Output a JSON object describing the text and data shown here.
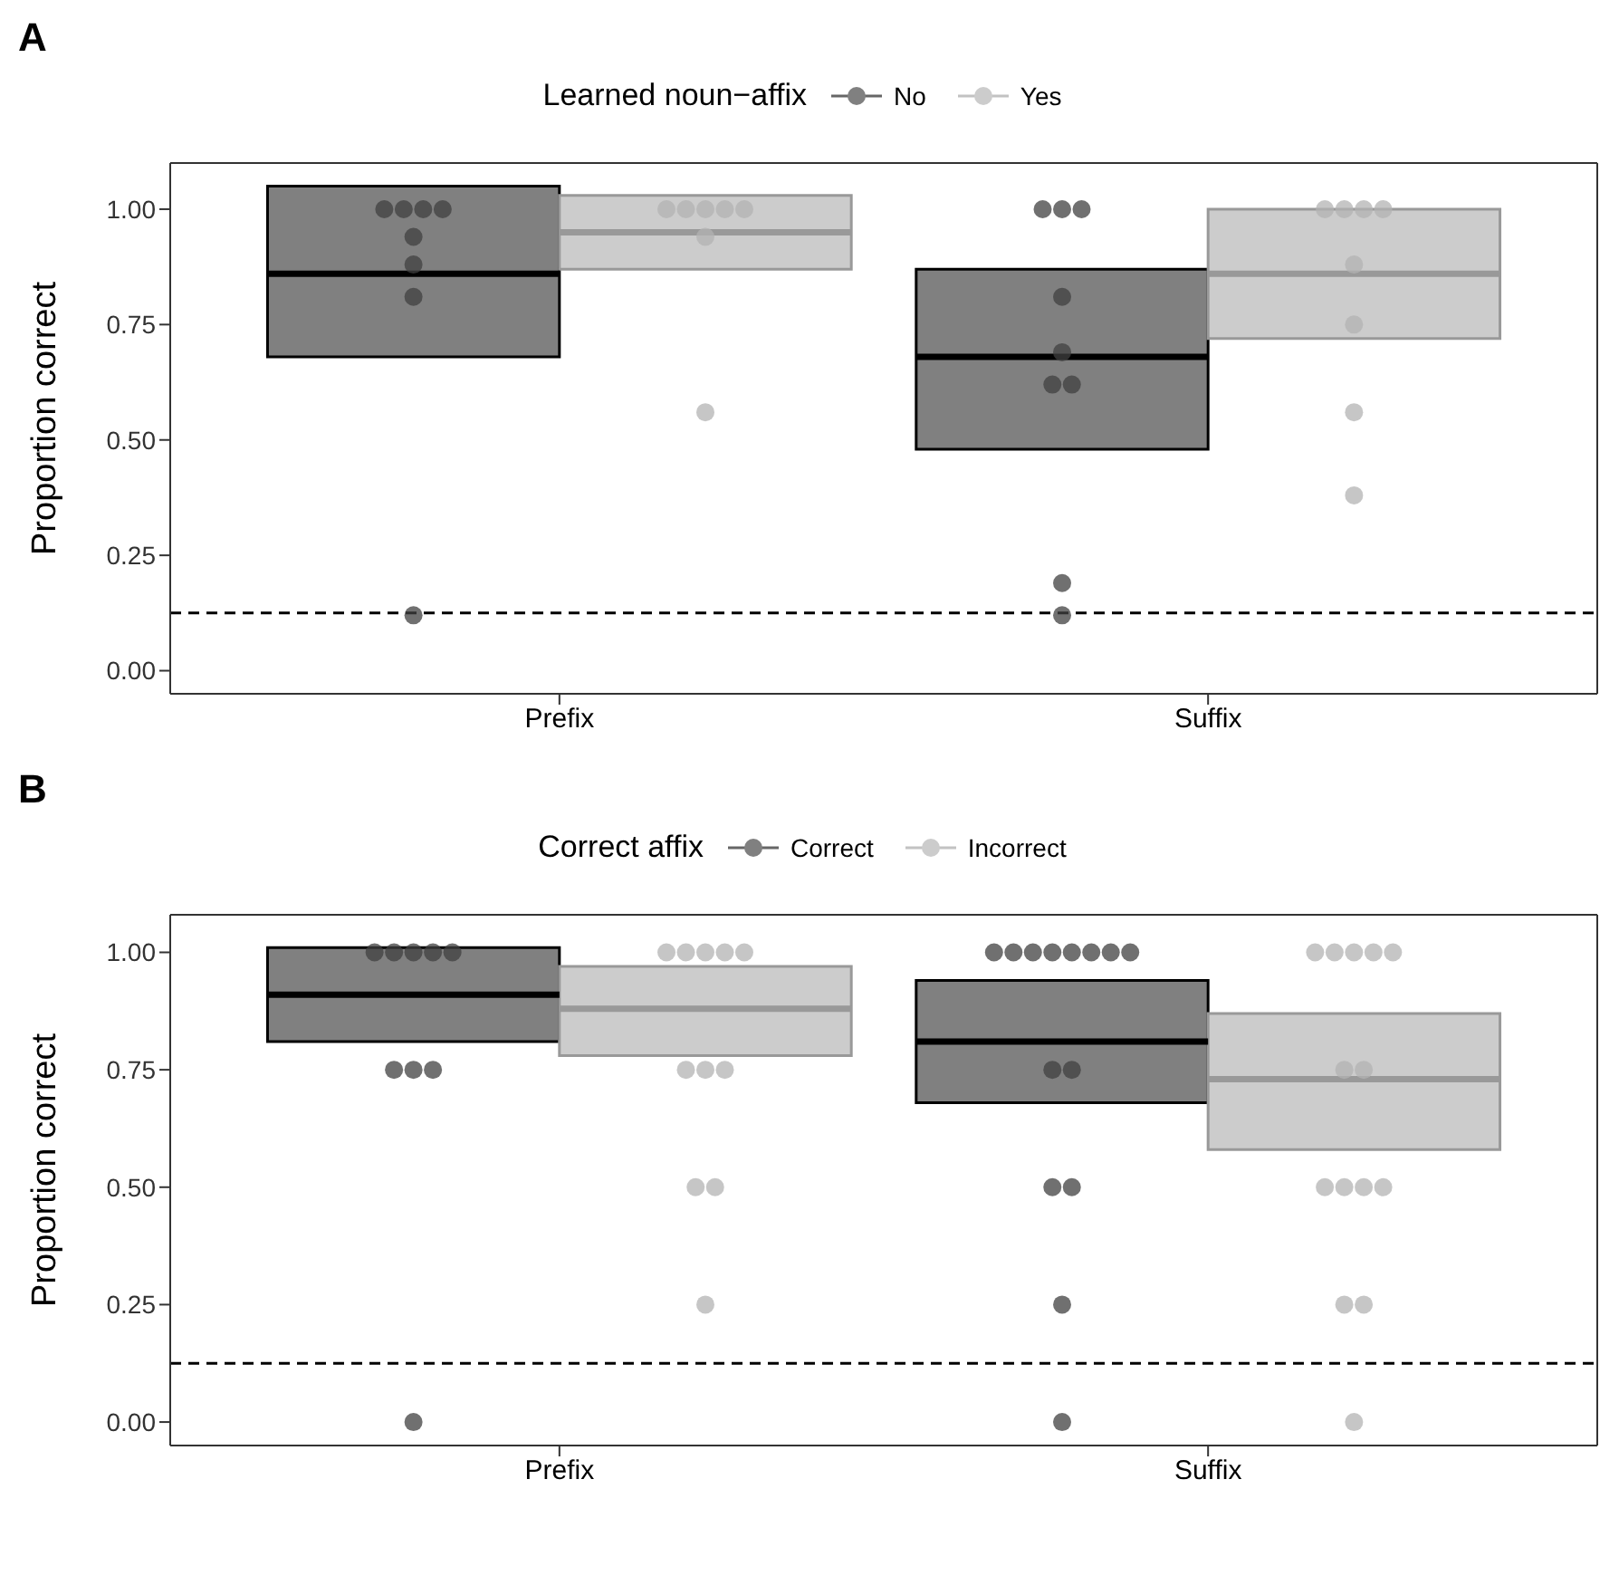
{
  "chart_data": [
    {
      "type": "box",
      "title": "A",
      "legend_title": "Learned noun−affix",
      "ylabel": "Proportion correct",
      "categories": [
        "Prefix",
        "Suffix"
      ],
      "ylim": [
        -0.05,
        1.1
      ],
      "yticks": [
        {
          "value": 0,
          "label": "0.00"
        },
        {
          "value": 0.25,
          "label": "0.25"
        },
        {
          "value": 0.5,
          "label": "0.50"
        },
        {
          "value": 0.75,
          "label": "0.75"
        },
        {
          "value": 1,
          "label": "1.00"
        }
      ],
      "legend": "top",
      "ref_lines": [
        {
          "axis": "y",
          "value": 0.125,
          "color": "#000000",
          "line_style": "dashed"
        }
      ],
      "series": [
        {
          "name": "No",
          "color": "#808080",
          "boxes": [
            {
              "low": 0.68,
              "q1": 0.68,
              "median": 0.86,
              "q3": 1.05,
              "high": 1.05
            },
            {
              "low": 0.48,
              "q1": 0.48,
              "median": 0.68,
              "q3": 0.87,
              "high": 0.87
            }
          ]
        },
        {
          "name": "Yes",
          "color": "#cccccc",
          "boxes": [
            {
              "low": 0.87,
              "q1": 0.87,
              "median": 0.95,
              "q3": 1.03,
              "high": 1.03
            },
            {
              "low": 0.72,
              "q1": 0.72,
              "median": 0.86,
              "q3": 1.0,
              "high": 1.0
            }
          ]
        },
        {
          "type": "scatter",
          "color": "#404040",
          "x": [
            "Prefix",
            "Prefix",
            "Prefix",
            "Prefix",
            "Prefix",
            "Prefix",
            "Prefix",
            "Prefix",
            "Suffix",
            "Suffix",
            "Suffix",
            "Suffix",
            "Suffix",
            "Suffix",
            "Suffix",
            "Suffix",
            "Suffix"
          ],
          "values": [
            1,
            1,
            1,
            1,
            0.94,
            0.88,
            0.81,
            0.12,
            1,
            1,
            1,
            0.81,
            0.69,
            0.62,
            0.62,
            0.19,
            0.12
          ]
        },
        {
          "type": "scatter",
          "color": "#b3b3b3",
          "x": [
            "Prefix",
            "Prefix",
            "Prefix",
            "Prefix",
            "Prefix",
            "Prefix",
            "Prefix",
            "Suffix",
            "Suffix",
            "Suffix",
            "Suffix",
            "Suffix",
            "Suffix",
            "Suffix",
            "Suffix"
          ],
          "values": [
            1,
            1,
            1,
            1,
            1,
            0.94,
            0.56,
            1,
            1,
            1,
            1,
            0.88,
            0.75,
            0.56,
            0.38
          ]
        }
      ]
    },
    {
      "type": "box",
      "title": "B",
      "legend_title": "Correct affix",
      "ylabel": "Proportion correct",
      "categories": [
        "Prefix",
        "Suffix"
      ],
      "ylim": [
        -0.05,
        1.08
      ],
      "yticks": [
        {
          "value": 0,
          "label": "0.00"
        },
        {
          "value": 0.25,
          "label": "0.25"
        },
        {
          "value": 0.5,
          "label": "0.50"
        },
        {
          "value": 0.75,
          "label": "0.75"
        },
        {
          "value": 1,
          "label": "1.00"
        }
      ],
      "legend": "top",
      "ref_lines": [
        {
          "axis": "y",
          "value": 0.125,
          "color": "#000000",
          "line_style": "dashed"
        }
      ],
      "series": [
        {
          "name": "Correct",
          "color": "#808080",
          "boxes": [
            {
              "low": 0.81,
              "q1": 0.81,
              "median": 0.91,
              "q3": 1.01,
              "high": 1.01
            },
            {
              "low": 0.68,
              "q1": 0.68,
              "median": 0.81,
              "q3": 0.94,
              "high": 0.94
            }
          ]
        },
        {
          "name": "Incorrect",
          "color": "#cccccc",
          "boxes": [
            {
              "low": 0.78,
              "q1": 0.78,
              "median": 0.88,
              "q3": 0.97,
              "high": 0.97
            },
            {
              "low": 0.58,
              "q1": 0.58,
              "median": 0.73,
              "q3": 0.87,
              "high": 0.87
            }
          ]
        },
        {
          "type": "scatter",
          "color": "#404040",
          "x": [
            "Prefix",
            "Prefix",
            "Prefix",
            "Prefix",
            "Prefix",
            "Prefix",
            "Prefix",
            "Prefix",
            "Prefix",
            "Suffix",
            "Suffix",
            "Suffix",
            "Suffix",
            "Suffix",
            "Suffix",
            "Suffix",
            "Suffix",
            "Suffix",
            "Suffix",
            "Suffix",
            "Suffix",
            "Suffix",
            "Suffix"
          ],
          "values": [
            1,
            1,
            1,
            1,
            1,
            0.75,
            0.75,
            0.75,
            0,
            1,
            1,
            1,
            1,
            1,
            1,
            1,
            1,
            0.75,
            0.75,
            0.5,
            0.5,
            0.25,
            0
          ]
        },
        {
          "type": "scatter",
          "color": "#b3b3b3",
          "x": [
            "Prefix",
            "Prefix",
            "Prefix",
            "Prefix",
            "Prefix",
            "Prefix",
            "Prefix",
            "Prefix",
            "Prefix",
            "Prefix",
            "Prefix",
            "Suffix",
            "Suffix",
            "Suffix",
            "Suffix",
            "Suffix",
            "Suffix",
            "Suffix",
            "Suffix",
            "Suffix",
            "Suffix",
            "Suffix",
            "Suffix",
            "Suffix",
            "Suffix"
          ],
          "values": [
            1,
            1,
            1,
            1,
            1,
            0.75,
            0.75,
            0.75,
            0.5,
            0.5,
            0.25,
            1,
            1,
            1,
            1,
            1,
            0.75,
            0.75,
            0.5,
            0.5,
            0.5,
            0.5,
            0.25,
            0.25,
            0
          ]
        }
      ]
    }
  ]
}
